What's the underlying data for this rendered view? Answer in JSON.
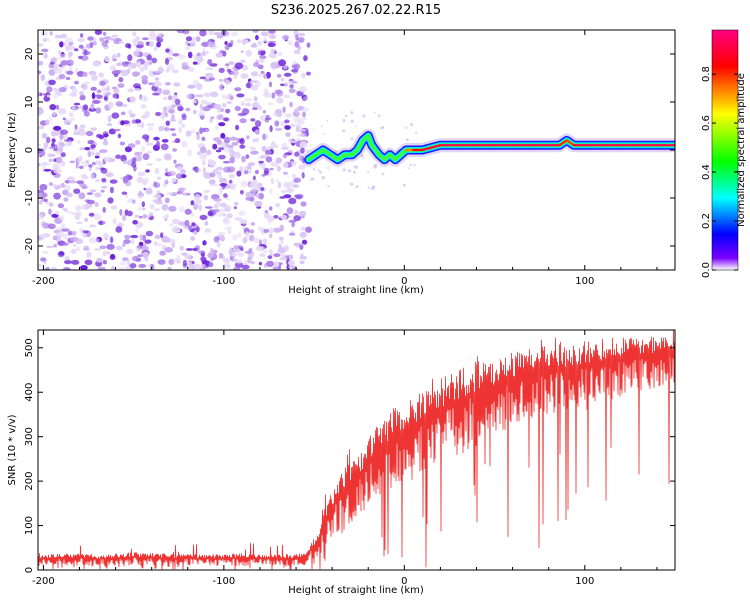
{
  "title": "S236.2025.267.02.22.R15",
  "chart_data": [
    {
      "type": "heatmap",
      "xlabel": "Height of straight line (km)",
      "ylabel": "Frequency (Hz)",
      "xlim": [
        -203,
        150
      ],
      "ylim": [
        -25,
        25
      ],
      "x_ticks": [
        -200,
        -100,
        0,
        100
      ],
      "x_tick_labels": [
        "-200",
        "-100",
        "0",
        "100"
      ],
      "y_ticks": [
        -20,
        -10,
        0,
        10,
        20
      ],
      "y_tick_labels": [
        "-20",
        "-10",
        "0",
        "10",
        "20"
      ],
      "noise_region_x": [
        -203,
        -53
      ],
      "ridge": {
        "x": [
          -53,
          -49,
          -45,
          -41,
          -37,
          -33,
          -29,
          -26,
          -23,
          -20,
          -18,
          -16,
          -14,
          -11,
          -8,
          -5,
          -2,
          1,
          5,
          10,
          20,
          30,
          40,
          50,
          60,
          70,
          80,
          86,
          90,
          94,
          100,
          110,
          120,
          130,
          140,
          150
        ],
        "y": [
          -2,
          -1,
          0,
          -1,
          -2,
          -1,
          -1,
          0,
          2,
          3,
          1,
          0,
          -1,
          -2,
          -1,
          -2,
          -1,
          0,
          0,
          0,
          1,
          1,
          1,
          1,
          1,
          1,
          1,
          1,
          2,
          1,
          1,
          1,
          1,
          1,
          1,
          1
        ],
        "amplitude": [
          0.15,
          0.2,
          0.3,
          0.3,
          0.35,
          0.4,
          0.4,
          0.45,
          0.5,
          0.45,
          0.45,
          0.5,
          0.55,
          0.55,
          0.6,
          0.6,
          0.65,
          0.7,
          0.8,
          0.9,
          0.95,
          0.95,
          0.95,
          0.95,
          0.95,
          0.95,
          0.95,
          0.95,
          0.7,
          0.9,
          0.95,
          0.95,
          0.95,
          0.95,
          0.95,
          0.95
        ]
      },
      "colorbar": {
        "label": "Normalized spectral amplitude",
        "ticks": [
          0.0,
          0.2,
          0.4,
          0.6,
          0.8
        ],
        "tick_labels": [
          "0.0",
          "0.2",
          "0.4",
          "0.6",
          "0.8"
        ],
        "range": [
          0,
          0.98
        ],
        "colormap": [
          "#ffffff",
          "#7b00ff",
          "#0000ff",
          "#00ffff",
          "#00ff00",
          "#ffff00",
          "#ff0000",
          "#ff0080"
        ]
      },
      "noise_color": "#7a2be2"
    },
    {
      "type": "line",
      "xlabel": "Height of straight line (km)",
      "ylabel": "SNR (10 * v/v)",
      "xlim": [
        -203,
        150
      ],
      "ylim": [
        0,
        540
      ],
      "x_ticks": [
        -200,
        -100,
        0,
        100
      ],
      "x_tick_labels": [
        "-200",
        "-100",
        "0",
        "100"
      ],
      "y_ticks": [
        0,
        100,
        200,
        300,
        400,
        500
      ],
      "y_tick_labels": [
        "0",
        "100",
        "200",
        "300",
        "400",
        "500"
      ],
      "color": "#ee3333",
      "series": [
        {
          "x": [
            -203,
            -190,
            -170,
            -150,
            -130,
            -110,
            -90,
            -70,
            -55,
            -48,
            -45,
            -40,
            -35,
            -30,
            -25,
            -20,
            -15,
            -10,
            -5,
            0,
            10,
            20,
            30,
            40,
            50,
            60,
            70,
            80,
            90,
            100,
            110,
            120,
            130,
            140,
            150
          ],
          "upper": [
            35,
            38,
            35,
            40,
            37,
            35,
            38,
            35,
            38,
            90,
            150,
            180,
            230,
            250,
            260,
            300,
            320,
            340,
            370,
            380,
            400,
            430,
            450,
            470,
            480,
            490,
            500,
            505,
            510,
            515,
            520,
            525,
            525,
            530,
            520
          ],
          "lower": [
            10,
            10,
            10,
            10,
            10,
            10,
            10,
            10,
            10,
            20,
            40,
            60,
            80,
            100,
            120,
            140,
            160,
            170,
            190,
            200,
            220,
            240,
            260,
            280,
            300,
            320,
            340,
            350,
            360,
            370,
            380,
            390,
            400,
            410,
            420
          ]
        }
      ]
    }
  ]
}
